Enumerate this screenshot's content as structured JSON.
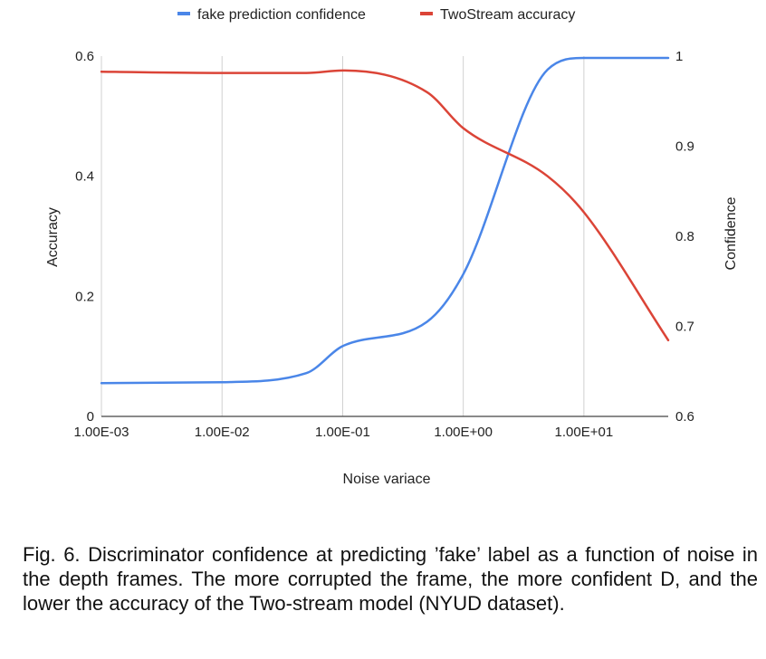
{
  "chart_data": {
    "type": "line",
    "xlabel": "Noise variace",
    "ylabel_left": "Accuracy",
    "ylabel_right": "Confidence",
    "x_scale": "log",
    "xlim": [
      0.001,
      50
    ],
    "x_ticks": [
      0.001,
      0.01,
      0.1,
      1,
      10
    ],
    "x_tick_labels": [
      "1.00E-03",
      "1.00E-02",
      "1.00E-01",
      "1.00E+00",
      "1.00E+01"
    ],
    "ylim_left": [
      0,
      0.6
    ],
    "y_ticks_left": [
      0,
      0.2,
      0.4,
      0.6
    ],
    "y_tick_labels_left": [
      "0",
      "0.2",
      "0.4",
      "0.6"
    ],
    "ylim_right": [
      0.6,
      1.0
    ],
    "y_ticks_right": [
      0.6,
      0.7,
      0.8,
      0.9,
      1.0
    ],
    "y_tick_labels_right": [
      "0.6",
      "0.7",
      "0.8",
      "0.9",
      "1"
    ],
    "grid": "vertical",
    "legend_position": "top",
    "series": [
      {
        "name": "fake prediction confidence",
        "color": "#4a86e8",
        "axis": "right",
        "x": [
          0.001,
          0.01,
          0.05,
          0.1,
          0.5,
          1,
          5,
          10,
          50
        ],
        "y": [
          0.637,
          0.638,
          0.648,
          0.678,
          0.705,
          0.758,
          0.985,
          0.998,
          0.998
        ]
      },
      {
        "name": "TwoStream accuracy",
        "color": "#db4437",
        "axis": "left",
        "x": [
          0.001,
          0.01,
          0.05,
          0.1,
          0.5,
          1,
          5,
          10,
          50
        ],
        "y": [
          0.574,
          0.572,
          0.572,
          0.576,
          0.54,
          0.48,
          0.4,
          0.34,
          0.127
        ]
      }
    ]
  },
  "caption": "Fig. 6. Discriminator confidence at predicting ’fake’ label as a function of noise in the depth frames. The more corrupted the frame, the more confident D, and the lower the accuracy of the Two-stream model (NYUD dataset)."
}
